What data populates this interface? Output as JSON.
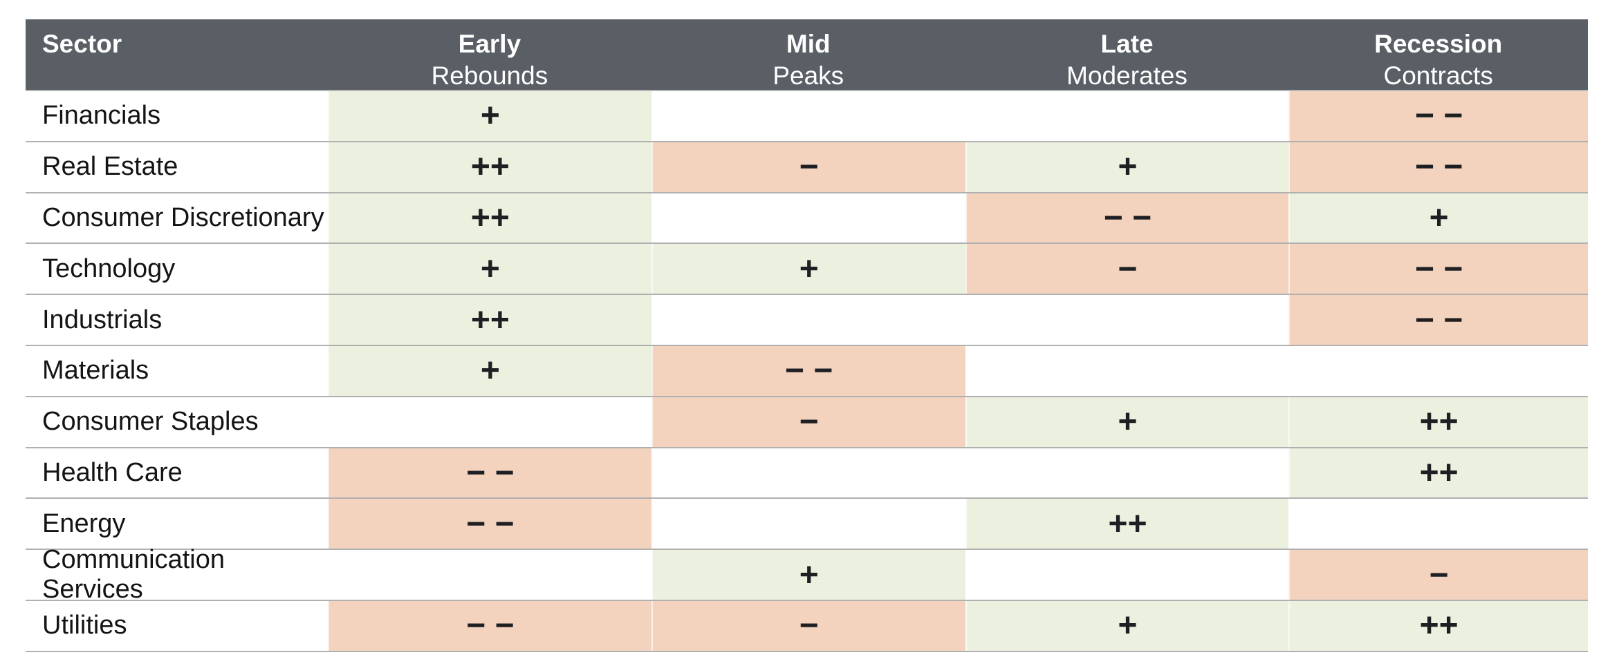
{
  "chart_data": {
    "type": "table",
    "columns": [
      {
        "line1": "Sector",
        "line2": ""
      },
      {
        "line1": "Early",
        "line2": "Rebounds"
      },
      {
        "line1": "Mid",
        "line2": "Peaks"
      },
      {
        "line1": "Late",
        "line2": "Moderates"
      },
      {
        "line1": "Recession",
        "line2": "Contracts"
      }
    ],
    "rows": [
      {
        "sector": "Financials",
        "cells": [
          {
            "symbol": "+",
            "state": "positive"
          },
          {
            "symbol": "",
            "state": "none"
          },
          {
            "symbol": "",
            "state": "none"
          },
          {
            "symbol": "− −",
            "state": "negative"
          }
        ]
      },
      {
        "sector": "Real Estate",
        "cells": [
          {
            "symbol": "++",
            "state": "positive"
          },
          {
            "symbol": "−",
            "state": "negative"
          },
          {
            "symbol": "+",
            "state": "positive"
          },
          {
            "symbol": "− −",
            "state": "negative"
          }
        ]
      },
      {
        "sector": "Consumer Discretionary",
        "cells": [
          {
            "symbol": "++",
            "state": "positive"
          },
          {
            "symbol": "",
            "state": "none"
          },
          {
            "symbol": "− −",
            "state": "negative"
          },
          {
            "symbol": "+",
            "state": "positive"
          }
        ]
      },
      {
        "sector": "Technology",
        "cells": [
          {
            "symbol": "+",
            "state": "positive"
          },
          {
            "symbol": "+",
            "state": "positive"
          },
          {
            "symbol": "−",
            "state": "negative"
          },
          {
            "symbol": "− −",
            "state": "negative"
          }
        ]
      },
      {
        "sector": "Industrials",
        "cells": [
          {
            "symbol": "++",
            "state": "positive"
          },
          {
            "symbol": "",
            "state": "none"
          },
          {
            "symbol": "",
            "state": "none"
          },
          {
            "symbol": "− −",
            "state": "negative"
          }
        ]
      },
      {
        "sector": "Materials",
        "cells": [
          {
            "symbol": "+",
            "state": "positive"
          },
          {
            "symbol": "− −",
            "state": "negative"
          },
          {
            "symbol": "",
            "state": "none"
          },
          {
            "symbol": "",
            "state": "none"
          }
        ]
      },
      {
        "sector": "Consumer Staples",
        "cells": [
          {
            "symbol": "",
            "state": "none"
          },
          {
            "symbol": "−",
            "state": "negative"
          },
          {
            "symbol": "+",
            "state": "positive"
          },
          {
            "symbol": "++",
            "state": "positive"
          }
        ]
      },
      {
        "sector": "Health Care",
        "cells": [
          {
            "symbol": "− −",
            "state": "negative"
          },
          {
            "symbol": "",
            "state": "none"
          },
          {
            "symbol": "",
            "state": "none"
          },
          {
            "symbol": "++",
            "state": "positive"
          }
        ]
      },
      {
        "sector": "Energy",
        "cells": [
          {
            "symbol": "− −",
            "state": "negative"
          },
          {
            "symbol": "",
            "state": "none"
          },
          {
            "symbol": "++",
            "state": "positive"
          },
          {
            "symbol": "",
            "state": "none"
          }
        ]
      },
      {
        "sector": "Communication Services",
        "cells": [
          {
            "symbol": "",
            "state": "none"
          },
          {
            "symbol": "+",
            "state": "positive"
          },
          {
            "symbol": "",
            "state": "none"
          },
          {
            "symbol": "−",
            "state": "negative"
          }
        ]
      },
      {
        "sector": "Utilities",
        "cells": [
          {
            "symbol": "− −",
            "state": "negative"
          },
          {
            "symbol": "−",
            "state": "negative"
          },
          {
            "symbol": "+",
            "state": "positive"
          },
          {
            "symbol": "++",
            "state": "positive"
          }
        ]
      }
    ],
    "colors": {
      "header_bg": "#5a5f66",
      "header_text": "#ffffff",
      "positive_bg": "#ecf0df",
      "negative_bg": "#f3d3bd",
      "row_divider": "#b0b0b0",
      "symbol_text": "#1e1f22"
    },
    "layout": {
      "grid": "horizontal row dividers only",
      "legend_position": "none"
    }
  }
}
